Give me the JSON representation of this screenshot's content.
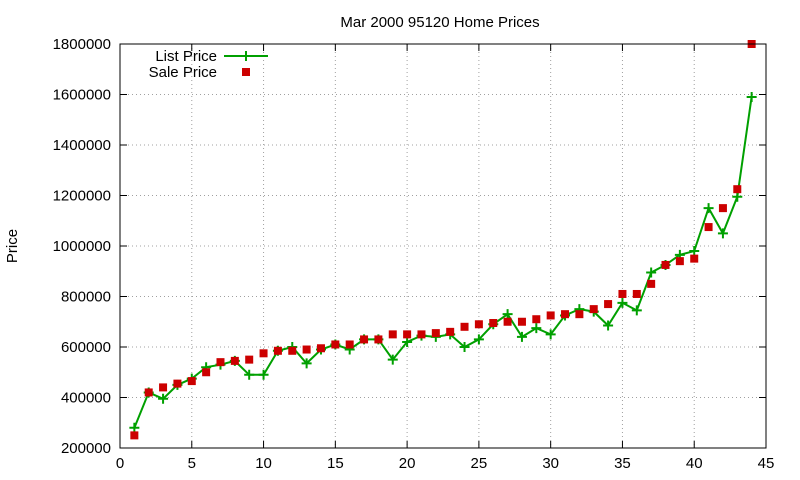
{
  "chart_data": {
    "type": "scatter",
    "title": "Mar 2000 95120 Home Prices",
    "xlabel": "",
    "ylabel": "Price",
    "xlim": [
      0,
      45
    ],
    "ylim": [
      200000,
      1800000
    ],
    "xticks": [
      0,
      5,
      10,
      15,
      20,
      25,
      30,
      35,
      40,
      45
    ],
    "yticks": [
      200000,
      400000,
      600000,
      800000,
      1000000,
      1200000,
      1400000,
      1600000,
      1800000
    ],
    "grid": true,
    "legend_position": "top-left",
    "series": [
      {
        "name": "List Price",
        "style": "linespoints",
        "color": "#00a000",
        "marker": "plus",
        "x": [
          1,
          2,
          3,
          4,
          5,
          6,
          7,
          8,
          9,
          10,
          11,
          12,
          13,
          14,
          15,
          16,
          17,
          18,
          19,
          20,
          21,
          22,
          23,
          24,
          25,
          26,
          27,
          28,
          29,
          30,
          31,
          32,
          33,
          34,
          35,
          36,
          37,
          38,
          39,
          40,
          41,
          42,
          43,
          44
        ],
        "y": [
          280000,
          420000,
          395000,
          450000,
          475000,
          520000,
          530000,
          545000,
          490000,
          490000,
          585000,
          600000,
          535000,
          590000,
          610000,
          590000,
          630000,
          630000,
          550000,
          620000,
          645000,
          640000,
          650000,
          600000,
          630000,
          690000,
          730000,
          640000,
          675000,
          650000,
          725000,
          750000,
          740000,
          685000,
          775000,
          745000,
          895000,
          925000,
          965000,
          980000,
          1150000,
          1050000,
          1195000,
          1590000
        ]
      },
      {
        "name": "Sale Price",
        "style": "points",
        "color": "#cc0000",
        "marker": "square",
        "x": [
          1,
          2,
          3,
          4,
          5,
          6,
          7,
          8,
          9,
          10,
          11,
          12,
          13,
          14,
          15,
          16,
          17,
          18,
          19,
          20,
          21,
          22,
          23,
          24,
          25,
          26,
          27,
          28,
          29,
          30,
          31,
          32,
          33,
          34,
          35,
          36,
          37,
          38,
          39,
          40,
          41,
          42,
          43,
          44
        ],
        "y": [
          250000,
          420000,
          440000,
          455000,
          465000,
          500000,
          540000,
          545000,
          550000,
          575000,
          585000,
          585000,
          590000,
          595000,
          610000,
          610000,
          630000,
          630000,
          650000,
          650000,
          650000,
          655000,
          660000,
          680000,
          690000,
          695000,
          700000,
          700000,
          710000,
          725000,
          730000,
          730000,
          750000,
          770000,
          810000,
          810000,
          850000,
          925000,
          940000,
          950000,
          1075000,
          1150000,
          1225000,
          1800000
        ]
      }
    ]
  }
}
